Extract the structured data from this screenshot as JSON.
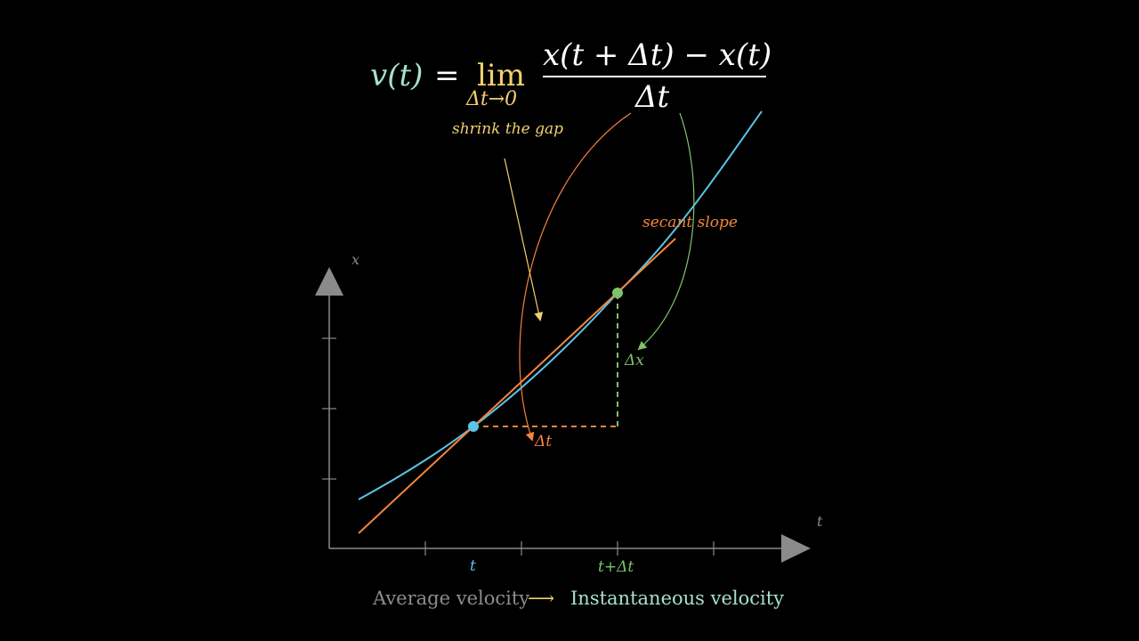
{
  "formula": {
    "lhs": "v(t)",
    "equals": "=",
    "lim": "lim",
    "lim_sub": "Δt→0",
    "numerator": "x(t + Δt) − x(t)",
    "denominator": "Δt"
  },
  "annotations": {
    "shrink_gap": "shrink the gap",
    "secant_slope": "secant slope",
    "delta_x": "Δx",
    "delta_t": "Δt"
  },
  "axes": {
    "x_axis_label": "t",
    "y_axis_label": "x",
    "tick_t": "t",
    "tick_t_plus_dt": "t+Δt"
  },
  "caption": {
    "from": "Average velocity",
    "arrow": "⟶",
    "to": "Instantaneous velocity"
  },
  "colors": {
    "background": "#000000",
    "curve": "#5bc4e8",
    "secant": "#f5843c",
    "green": "#7cc46a",
    "yellow": "#f3d06e",
    "teal": "#a6e0d0",
    "axis": "#8a8a8a",
    "white": "#ffffff",
    "caption_gray": "#8c8c8c"
  }
}
